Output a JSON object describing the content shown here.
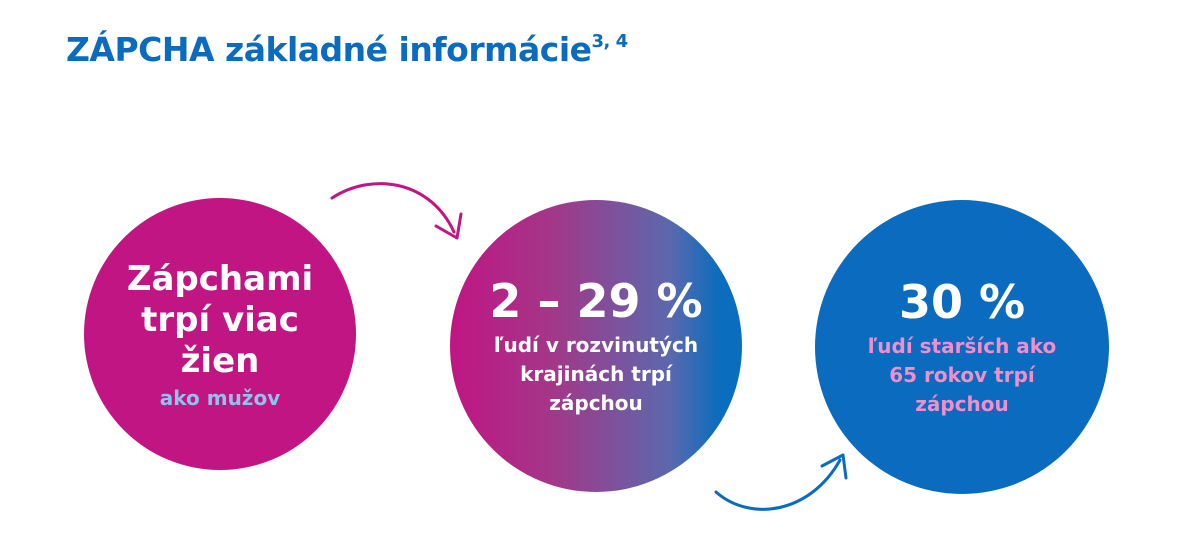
{
  "title": {
    "main": "ZÁPCHA základné informácie",
    "refs": "3, 4"
  },
  "circles": [
    {
      "lines": [
        "Zápchami",
        "trpí viac",
        "žien"
      ],
      "sub": "ako mužov"
    },
    {
      "value": "2 – 29 %",
      "lines": [
        "ľudí v rozvinutých",
        "krajinách trpí",
        "zápchou"
      ]
    },
    {
      "value": "30 %",
      "lines": [
        "ľudí starších ako",
        "65 rokov trpí",
        "zápchou"
      ]
    }
  ],
  "colors": {
    "title": "#0a6bbf",
    "magenta": "#c01583",
    "blue": "#0a6bbf",
    "light_blue_text": "#8fc3ee",
    "pink_text": "#f08fcb"
  },
  "icons": [
    "arrow-top-curved-icon",
    "arrow-bottom-curved-icon"
  ]
}
